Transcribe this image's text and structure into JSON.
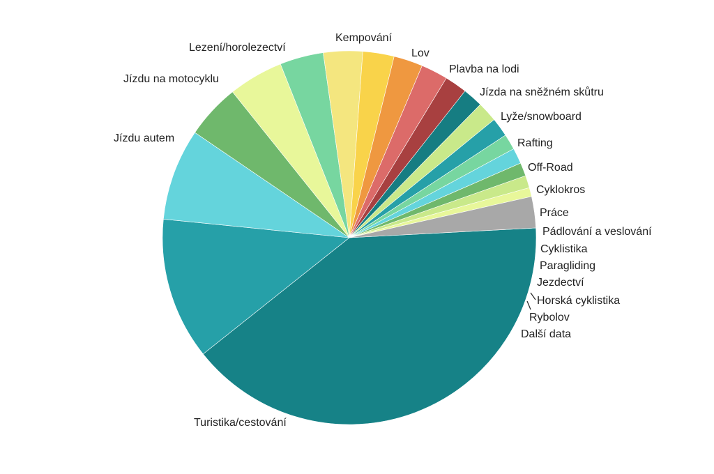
{
  "chart_data": {
    "type": "pie",
    "title": "",
    "legend": "none",
    "slices": [
      {
        "label": "Turistika/cestování",
        "value": 41.5,
        "color": "#168287"
      },
      {
        "label": "Jízdu autem",
        "value": 12.7,
        "color": "#26a0a8"
      },
      {
        "label": "Jízdu na motocyklu",
        "value": 8.2,
        "color": "#64d4dc"
      },
      {
        "label": "Lezení/horolezectví",
        "value": 4.9,
        "color": "#6fb86c"
      },
      {
        "label": "Kempování",
        "value": 4.9,
        "color": "#e8f79a"
      },
      {
        "label": "Lov",
        "value": 3.9,
        "color": "#77d6a0"
      },
      {
        "label": "Plavba na lodi",
        "value": 3.5,
        "color": "#f4e67f"
      },
      {
        "label": "Jízda na sněžném skůtru",
        "value": 2.8,
        "color": "#f9d34a"
      },
      {
        "label": "Lyže/snowboard",
        "value": 2.6,
        "color": "#ef9840"
      },
      {
        "label": "Rafting",
        "value": 2.4,
        "color": "#dc6b69"
      },
      {
        "label": "Off-Road",
        "value": 2.0,
        "color": "#a84040"
      },
      {
        "label": "Cyklokros",
        "value": 1.8,
        "color": "#167d82"
      },
      {
        "label": "Práce",
        "value": 1.8,
        "color": "#c9e98a"
      },
      {
        "label": "Pádlování a veslování",
        "value": 1.7,
        "color": "#26a0a8"
      },
      {
        "label": "Cyklistika",
        "value": 1.4,
        "color": "#77d6a0"
      },
      {
        "label": "Paragliding",
        "value": 1.4,
        "color": "#64d4dc"
      },
      {
        "label": "Jezdectví",
        "value": 1.2,
        "color": "#6fb86c"
      },
      {
        "label": "Horská cyklistika",
        "value": 1.1,
        "color": "#c9e98a"
      },
      {
        "label": "Rybolov",
        "value": 0.8,
        "color": "#e8f79a"
      },
      {
        "label": "Další data",
        "value": 2.8,
        "color": "#a8a8a8"
      }
    ]
  }
}
